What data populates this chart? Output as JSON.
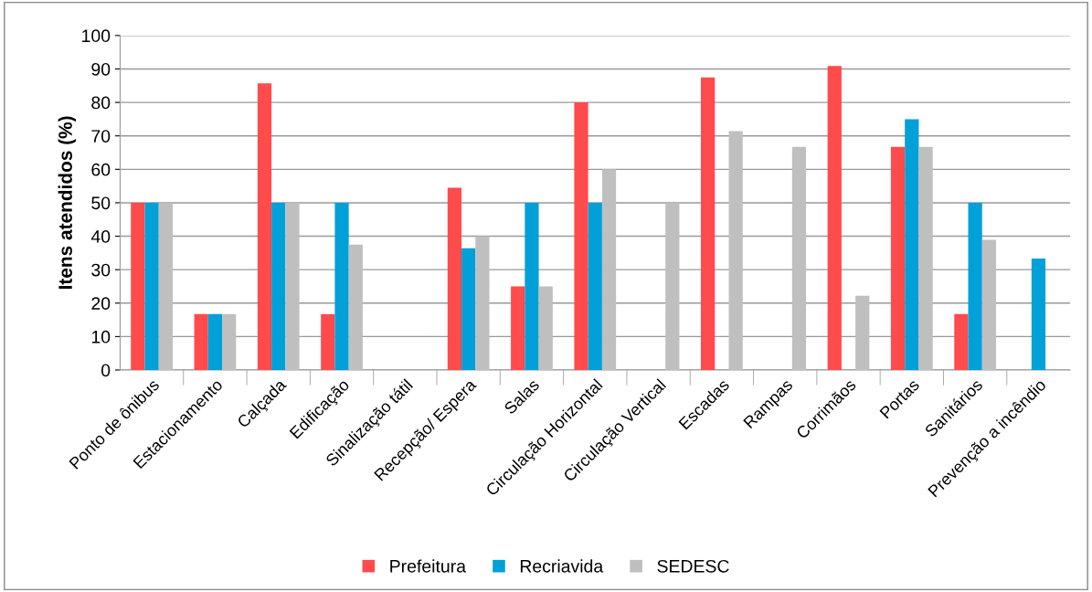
{
  "chart_data": {
    "type": "bar",
    "ylabel": "Itens atendidos (%)",
    "categories": [
      "Ponto de ônibus",
      "Estacionamento",
      "Calçada",
      "Edificação",
      "Sinalização tátil",
      "Recepção/ Espera",
      "Salas",
      "Circulação Horizontal",
      "Circulação Vertical",
      "Escadas",
      "Rampas",
      "Corrimãos",
      "Portas",
      "Sanitários",
      "Prevenção a incêndio"
    ],
    "series": [
      {
        "name": "Prefeitura",
        "color": "#ff4b4b",
        "values": [
          50,
          16.7,
          85.7,
          16.7,
          0,
          54.5,
          25,
          80,
          0,
          87.5,
          0,
          90.9,
          66.7,
          16.7,
          0
        ]
      },
      {
        "name": "Recriavida",
        "color": "#00a0d8",
        "values": [
          50,
          16.7,
          50,
          50,
          0,
          36.4,
          50,
          50,
          0,
          0,
          0,
          0,
          75,
          50,
          33.3
        ]
      },
      {
        "name": "SEDESC",
        "color": "#bfbfbf",
        "values": [
          50,
          16.7,
          50,
          37.5,
          0,
          40,
          25,
          60,
          50,
          71.4,
          66.7,
          22.2,
          66.7,
          38.9,
          0
        ]
      }
    ],
    "ylim": [
      0,
      100
    ],
    "yticks": [
      0,
      10,
      20,
      30,
      40,
      50,
      60,
      70,
      80,
      90,
      100
    ],
    "grid": "y",
    "legend": "bottom"
  }
}
